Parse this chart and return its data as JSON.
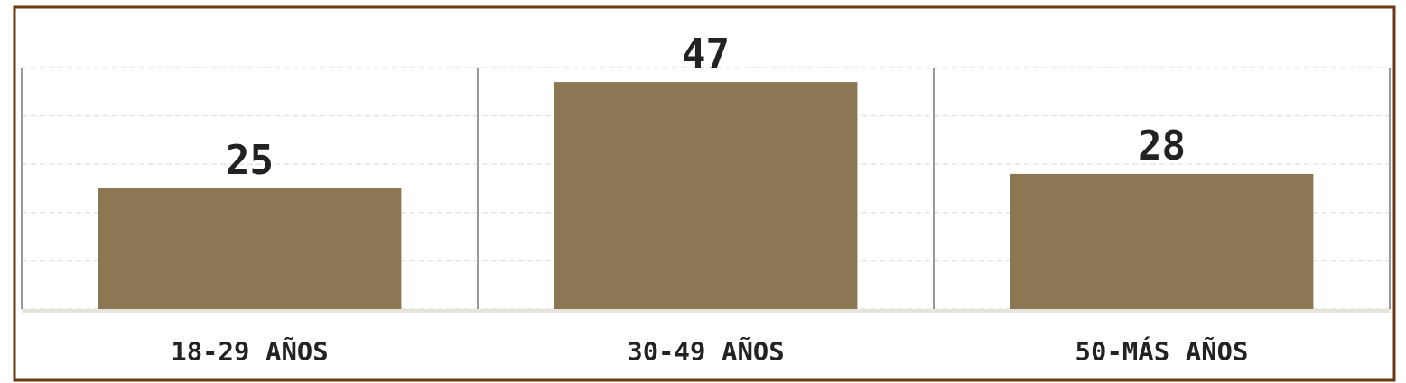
{
  "chart_data": {
    "type": "bar",
    "categories": [
      "18-29 AÑOS",
      "30-49 AÑOS",
      "50-MÁS AÑOS"
    ],
    "values": [
      25,
      47,
      28
    ],
    "color": "#8c7755",
    "data_labels": true,
    "grid": "y",
    "ylim": [
      0,
      50
    ],
    "yticks": [
      {
        "value": 0,
        "label": null
      },
      {
        "value": 10,
        "label": null
      },
      {
        "value": 20,
        "label": null
      },
      {
        "value": 30,
        "label": null
      },
      {
        "value": 40,
        "label": null
      },
      {
        "value": 50,
        "label": null
      }
    ],
    "tick_labels": "x"
  }
}
